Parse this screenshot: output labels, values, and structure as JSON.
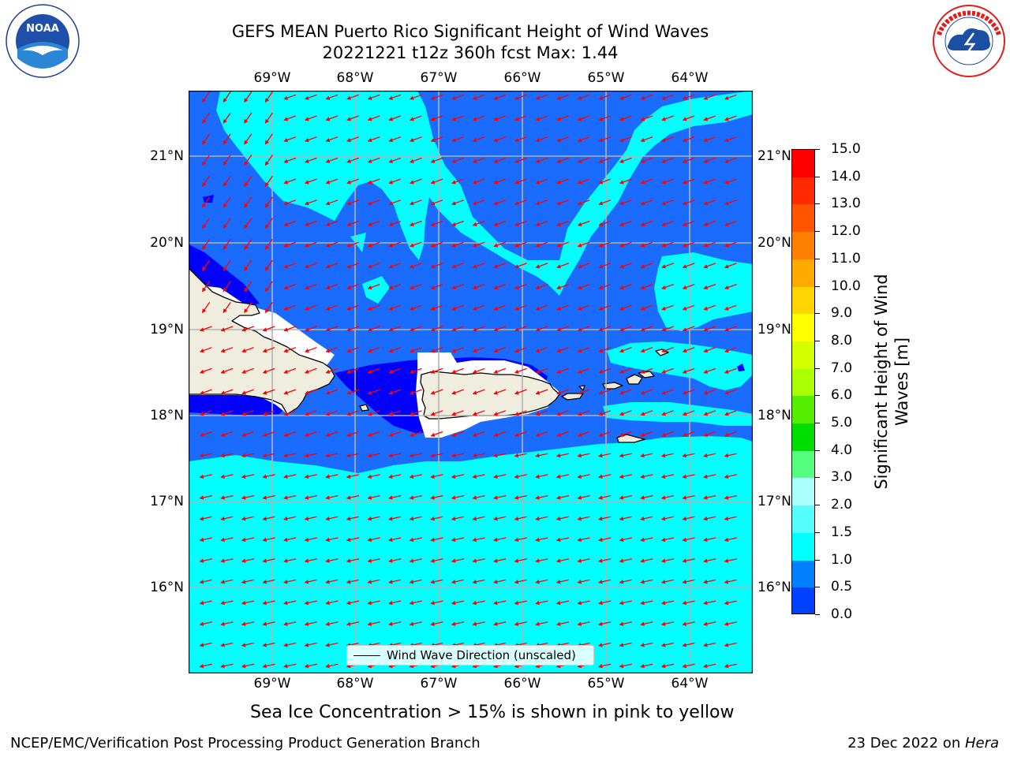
{
  "title_line1": "GEFS MEAN Puerto Rico Significant Height of Wind Waves",
  "title_line2": "20221221 t12z 360h fcst   Max: 1.44",
  "x_ticks_top": [
    "69°W",
    "68°W",
    "67°W",
    "66°W",
    "65°W",
    "64°W"
  ],
  "x_ticks_bottom": [
    "69°W",
    "68°W",
    "67°W",
    "66°W",
    "65°W",
    "64°W"
  ],
  "y_ticks_left": [
    "21°N",
    "20°N",
    "19°N",
    "18°N",
    "17°N",
    "16°N"
  ],
  "y_ticks_right": [
    "21°N",
    "20°N",
    "19°N",
    "18°N",
    "17°N",
    "16°N"
  ],
  "legend_label": "Wind Wave Direction (unscaled)",
  "colorbar": {
    "label": "Significant Height of Wind Waves [m]",
    "label_line1": "Significant Height of Wind",
    "label_line2": "Waves [m]",
    "ticks": [
      "15.0",
      "14.0",
      "13.0",
      "12.0",
      "11.0",
      "10.0",
      "9.0",
      "8.0",
      "7.0",
      "6.0",
      "5.0",
      "4.0",
      "3.0",
      "2.0",
      "1.5",
      "1.0",
      "0.5",
      "0.0"
    ],
    "colors_top_to_bottom": [
      "#ff0000",
      "#ff2a00",
      "#ff5500",
      "#ff8000",
      "#ffaa00",
      "#ffd400",
      "#ffff00",
      "#d4ff00",
      "#aaff00",
      "#55ee00",
      "#00dd00",
      "#55ff80",
      "#aaffff",
      "#55ffff",
      "#00ffff",
      "#0080ff",
      "#0040ff",
      "#0000ff"
    ]
  },
  "note": "Sea Ice Concentration > 15% is shown in pink to yellow",
  "footer_left": "NCEP/EMC/Verification Post Processing Product Generation Branch",
  "footer_date": "23 Dec 2022 on ",
  "footer_machine": "Hera",
  "logo_noaa_text": "NOAA",
  "logo_noaa_ring": "NATIONAL OCEANIC AND ATMOSPHERIC ADMINISTRATION · U.S. DEPARTMENT OF COMMERCE",
  "logo_nws_ring": "NATIONAL WEATHER SERVICE",
  "wave_field_colors": {
    "deep": "#0000ff",
    "mid": "#1a6bff",
    "light": "#00ffff",
    "land": "#efedde",
    "mask": "#ffffff",
    "arrow": "#ff0000"
  }
}
